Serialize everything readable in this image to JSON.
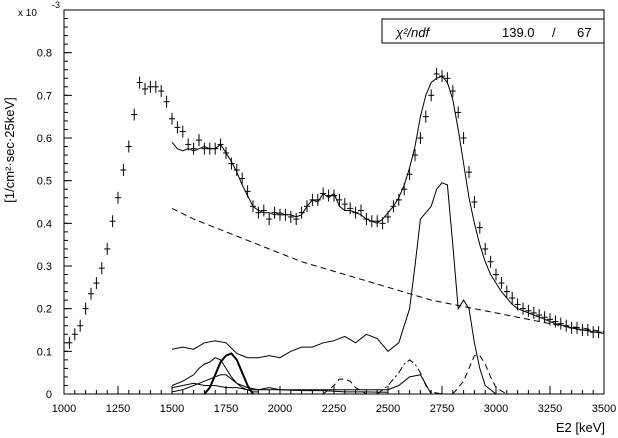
{
  "chart_data": {
    "type": "line",
    "title": "",
    "xlabel": "E2 [keV]",
    "ylabel": "[1/cm²·sec·25keV]",
    "y_multiplier": "x 10",
    "y_multiplier_exponent": "-3",
    "xlim": [
      1000,
      3500
    ],
    "ylim": [
      0,
      0.9
    ],
    "x_ticks": [
      "1000",
      "1250",
      "1500",
      "1750",
      "2000",
      "2250",
      "2500",
      "2750",
      "3000",
      "3250",
      "3500"
    ],
    "y_ticks": [
      "0",
      "0.1",
      "0.2",
      "0.3",
      "0.4",
      "0.5",
      "0.6",
      "0.7",
      "0.8"
    ],
    "grid": false,
    "stat_box": {
      "label": "χ²/ndf",
      "chi2": "139.0",
      "separator": "/",
      "ndf": "67"
    },
    "data_points": {
      "name": "",
      "x": [
        1025,
        1050,
        1075,
        1100,
        1125,
        1150,
        1175,
        1200,
        1225,
        1250,
        1275,
        1300,
        1325,
        1350,
        1375,
        1400,
        1425,
        1450,
        1475,
        1500,
        1525,
        1550,
        1575,
        1600,
        1625,
        1650,
        1675,
        1700,
        1725,
        1750,
        1775,
        1800,
        1825,
        1850,
        1875,
        1900,
        1925,
        1950,
        1975,
        2000,
        2025,
        2050,
        2075,
        2100,
        2125,
        2150,
        2175,
        2200,
        2225,
        2250,
        2275,
        2300,
        2325,
        2350,
        2375,
        2400,
        2425,
        2450,
        2475,
        2500,
        2525,
        2550,
        2575,
        2600,
        2625,
        2650,
        2675,
        2700,
        2725,
        2750,
        2775,
        2800,
        2825,
        2850,
        2875,
        2900,
        2925,
        2950,
        2975,
        3000,
        3025,
        3050,
        3075,
        3100,
        3125,
        3150,
        3175,
        3200,
        3225,
        3250,
        3275,
        3300,
        3325,
        3350,
        3375,
        3400,
        3425,
        3450,
        3475
      ],
      "y": [
        0.12,
        0.14,
        0.16,
        0.2,
        0.235,
        0.26,
        0.295,
        0.34,
        0.405,
        0.46,
        0.525,
        0.58,
        0.655,
        0.73,
        0.715,
        0.72,
        0.72,
        0.71,
        0.685,
        0.645,
        0.625,
        0.615,
        0.585,
        0.575,
        0.595,
        0.575,
        0.575,
        0.575,
        0.585,
        0.565,
        0.54,
        0.525,
        0.505,
        0.475,
        0.44,
        0.425,
        0.43,
        0.41,
        0.425,
        0.42,
        0.42,
        0.415,
        0.41,
        0.425,
        0.44,
        0.455,
        0.455,
        0.47,
        0.465,
        0.465,
        0.455,
        0.445,
        0.435,
        0.425,
        0.43,
        0.41,
        0.405,
        0.405,
        0.4,
        0.415,
        0.44,
        0.455,
        0.48,
        0.515,
        0.56,
        0.6,
        0.65,
        0.7,
        0.75,
        0.745,
        0.74,
        0.71,
        0.66,
        0.6,
        0.52,
        0.45,
        0.39,
        0.34,
        0.31,
        0.28,
        0.26,
        0.24,
        0.225,
        0.21,
        0.2,
        0.195,
        0.19,
        0.185,
        0.18,
        0.175,
        0.17,
        0.165,
        0.16,
        0.155,
        0.155,
        0.15,
        0.15,
        0.145,
        0.145
      ]
    },
    "series": [
      {
        "name": "",
        "style": "solid",
        "x": [
          1500,
          1525,
          1550,
          1575,
          1600,
          1625,
          1650,
          1675,
          1700,
          1725,
          1750,
          1775,
          1800,
          1825,
          1850,
          1875,
          1900,
          1925,
          1950,
          1975,
          2000,
          2025,
          2050,
          2075,
          2100,
          2125,
          2150,
          2175,
          2200,
          2225,
          2250,
          2275,
          2300,
          2325,
          2350,
          2375,
          2400,
          2425,
          2450,
          2475,
          2500,
          2525,
          2550,
          2575,
          2600,
          2625,
          2650,
          2675,
          2700,
          2725,
          2750,
          2775,
          2800,
          2825,
          2850,
          2875,
          2900,
          2925,
          2950,
          2975,
          3000,
          3025,
          3050,
          3075,
          3100,
          3125,
          3150,
          3175,
          3200,
          3225,
          3250,
          3275,
          3300,
          3325,
          3350,
          3375,
          3400,
          3425,
          3450,
          3475,
          3500
        ],
        "y": [
          0.59,
          0.575,
          0.57,
          0.575,
          0.57,
          0.575,
          0.58,
          0.575,
          0.575,
          0.585,
          0.565,
          0.545,
          0.52,
          0.49,
          0.465,
          0.44,
          0.43,
          0.425,
          0.425,
          0.42,
          0.425,
          0.42,
          0.42,
          0.415,
          0.42,
          0.44,
          0.455,
          0.45,
          0.47,
          0.46,
          0.47,
          0.44,
          0.43,
          0.43,
          0.425,
          0.42,
          0.41,
          0.405,
          0.4,
          0.41,
          0.425,
          0.44,
          0.46,
          0.49,
          0.53,
          0.58,
          0.65,
          0.7,
          0.73,
          0.74,
          0.745,
          0.73,
          0.69,
          0.62,
          0.54,
          0.46,
          0.4,
          0.35,
          0.31,
          0.28,
          0.26,
          0.24,
          0.225,
          0.21,
          0.2,
          0.195,
          0.19,
          0.185,
          0.18,
          0.175,
          0.17,
          0.165,
          0.162,
          0.158,
          0.155,
          0.152,
          0.15,
          0.148,
          0.146,
          0.144,
          0.142
        ]
      },
      {
        "name": "",
        "style": "dashed",
        "x": [
          1500,
          1600,
          1700,
          1800,
          1900,
          2000,
          2100,
          2200,
          2300,
          2400,
          2500,
          2600,
          2700,
          2800,
          2900,
          3000,
          3100,
          3200,
          3300,
          3400,
          3500
        ],
        "y": [
          0.435,
          0.41,
          0.39,
          0.37,
          0.35,
          0.33,
          0.31,
          0.295,
          0.28,
          0.265,
          0.25,
          0.235,
          0.22,
          0.21,
          0.2,
          0.19,
          0.18,
          0.17,
          0.16,
          0.155,
          0.145
        ]
      },
      {
        "name": "",
        "style": "solid",
        "x": [
          1500,
          1550,
          1600,
          1650,
          1700,
          1750,
          1800,
          1850,
          1900,
          1950,
          2000,
          2050,
          2100,
          2150,
          2200,
          2250,
          2300,
          2350,
          2400,
          2450,
          2500,
          2550,
          2600,
          2625,
          2650,
          2675,
          2700,
          2725,
          2750,
          2775,
          2800,
          2825,
          2850,
          2875,
          2900,
          2925,
          2950,
          3000
        ],
        "y": [
          0.105,
          0.11,
          0.105,
          0.12,
          0.125,
          0.12,
          0.095,
          0.085,
          0.085,
          0.09,
          0.085,
          0.1,
          0.11,
          0.11,
          0.12,
          0.125,
          0.135,
          0.12,
          0.14,
          0.13,
          0.1,
          0.12,
          0.2,
          0.3,
          0.41,
          0.425,
          0.44,
          0.48,
          0.495,
          0.49,
          0.35,
          0.2,
          0.22,
          0.2,
          0.12,
          0.06,
          0.02,
          0.0
        ]
      },
      {
        "name": "",
        "style": "solid",
        "x": [
          1500,
          1550,
          1600,
          1625,
          1650,
          1675,
          1700,
          1725,
          1750,
          1775,
          1800,
          1825,
          1850,
          1875,
          1900
        ],
        "y": [
          0.02,
          0.03,
          0.045,
          0.06,
          0.07,
          0.075,
          0.085,
          0.08,
          0.06,
          0.04,
          0.025,
          0.015,
          0.01,
          0.005,
          0.005
        ]
      },
      {
        "name": "",
        "style": "solid",
        "x": [
          1500,
          1550,
          1600,
          1650,
          1700,
          1725,
          1750,
          1775,
          1800,
          1850,
          1900,
          2000,
          2100,
          2200,
          2300,
          2400,
          2500
        ],
        "y": [
          0.005,
          0.01,
          0.02,
          0.03,
          0.04,
          0.045,
          0.045,
          0.035,
          0.025,
          0.015,
          0.01,
          0.01,
          0.008,
          0.008,
          0.005,
          0.005,
          0.004
        ]
      },
      {
        "name": "",
        "style": "bold",
        "x": [
          1650,
          1675,
          1700,
          1725,
          1750,
          1775,
          1800,
          1825,
          1850,
          1875
        ],
        "y": [
          0.0,
          0.015,
          0.045,
          0.075,
          0.09,
          0.095,
          0.08,
          0.05,
          0.02,
          0.0
        ]
      },
      {
        "name": "",
        "style": "dashdot",
        "x": [
          2450,
          2500,
          2550,
          2575,
          2600,
          2625,
          2650,
          2675,
          2700,
          2750
        ],
        "y": [
          0.0,
          0.02,
          0.05,
          0.07,
          0.08,
          0.07,
          0.05,
          0.02,
          0.005,
          0.0
        ]
      },
      {
        "name": "",
        "style": "dashed",
        "x": [
          2200,
          2250,
          2275,
          2300,
          2325,
          2350,
          2400
        ],
        "y": [
          0.0,
          0.02,
          0.035,
          0.035,
          0.03,
          0.015,
          0.0
        ]
      },
      {
        "name": "",
        "style": "dashed",
        "x": [
          2800,
          2850,
          2875,
          2900,
          2925,
          2950,
          2975,
          3000,
          3050
        ],
        "y": [
          0.0,
          0.03,
          0.06,
          0.09,
          0.09,
          0.07,
          0.04,
          0.015,
          0.0
        ]
      },
      {
        "name": "",
        "style": "solid",
        "x": [
          1500,
          1550,
          1600,
          1650,
          1700,
          1750,
          1800,
          1850,
          1900,
          1950,
          2000,
          2050,
          2100,
          2200,
          2300,
          2400,
          2500,
          2550,
          2600,
          2650,
          2700
        ],
        "y": [
          0.015,
          0.02,
          0.025,
          0.02,
          0.02,
          0.015,
          0.015,
          0.01,
          0.01,
          0.015,
          0.01,
          0.01,
          0.01,
          0.01,
          0.01,
          0.01,
          0.01,
          0.02,
          0.04,
          0.045,
          0.0
        ]
      }
    ],
    "colors": {
      "foreground": "#000000",
      "background": "#ffffff"
    }
  }
}
